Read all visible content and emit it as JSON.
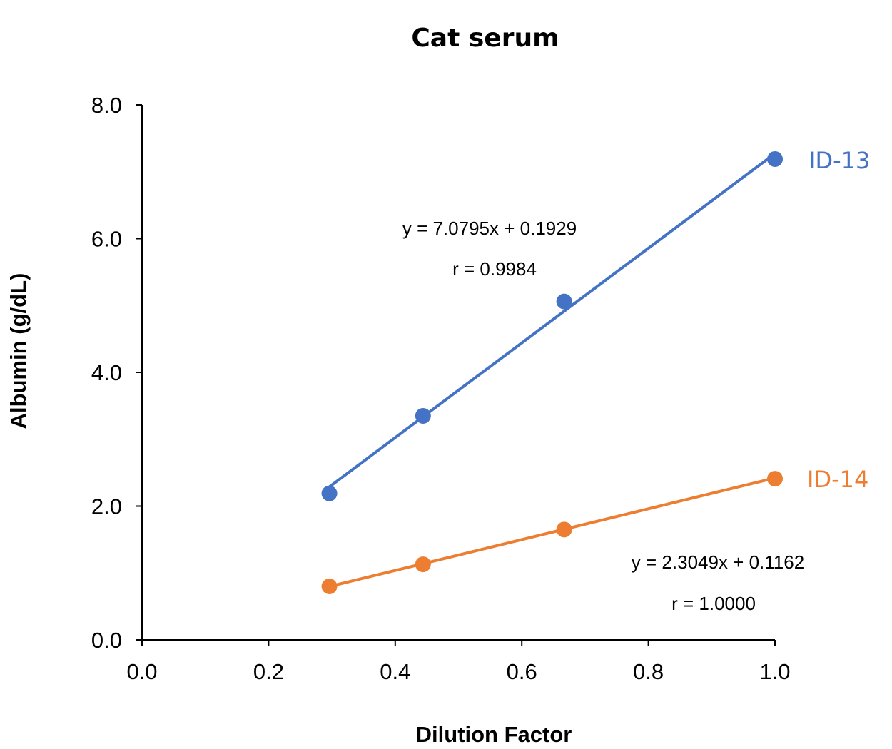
{
  "chart_data": {
    "type": "scatter",
    "title": "Cat serum",
    "xlabel": "Dilution Factor",
    "ylabel": "Albumin (g/dL)",
    "xlim": [
      0.0,
      1.0
    ],
    "ylim": [
      0.0,
      8.0
    ],
    "x_ticks": [
      "0.0",
      "0.2",
      "0.4",
      "0.6",
      "0.8",
      "1.0"
    ],
    "y_ticks": [
      "0.0",
      "2.0",
      "4.0",
      "6.0",
      "8.0"
    ],
    "grid": false,
    "series": [
      {
        "name": "ID-13",
        "color": "#4472C4",
        "x": [
          0.296,
          0.444,
          0.667,
          1.0
        ],
        "y": [
          2.19,
          3.35,
          5.06,
          7.19
        ],
        "trendline": {
          "slope": 7.0795,
          "intercept": 0.1929
        },
        "equation": "y = 7.0795x + 0.1929",
        "r": "r = 0.9984"
      },
      {
        "name": "ID-14",
        "color": "#ED7D31",
        "x": [
          0.296,
          0.444,
          0.667,
          1.0
        ],
        "y": [
          0.8,
          1.13,
          1.65,
          2.41
        ],
        "trendline": {
          "slope": 2.3049,
          "intercept": 0.1162
        },
        "equation": "y = 2.3049x + 0.1162",
        "r": "r = 1.0000"
      }
    ]
  }
}
